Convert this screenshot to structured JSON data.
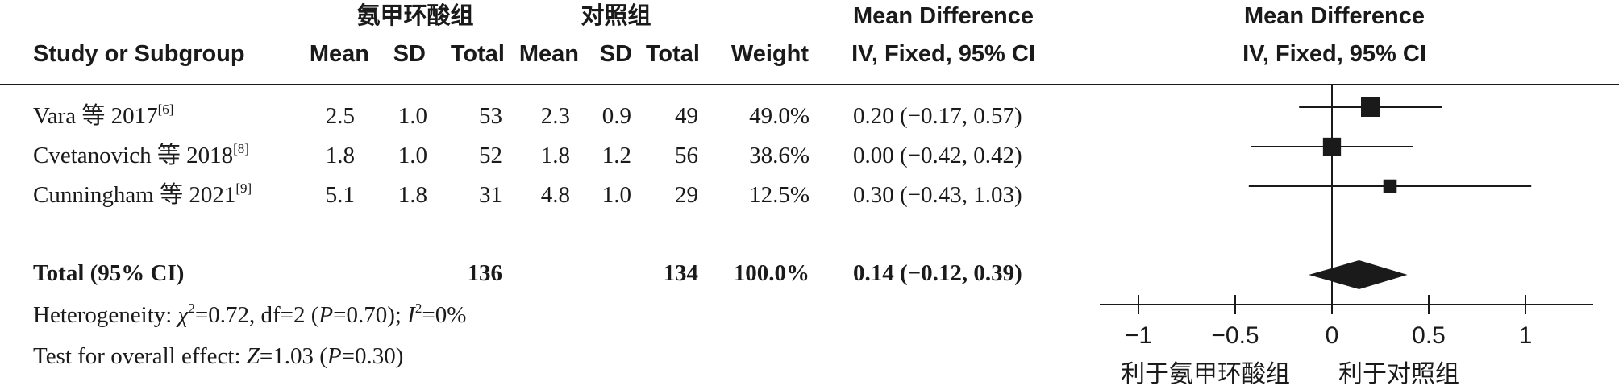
{
  "header": {
    "group1": "氨甲环酸组",
    "group2": "对照组",
    "md_top": "Mean Difference",
    "md_sub": "IV, Fixed, 95% CI",
    "plot_top": "Mean Difference",
    "plot_sub": "IV, Fixed, 95% CI",
    "study": "Study or Subgroup",
    "mean1": "Mean",
    "sd1": "SD",
    "total1": "Total",
    "mean2": "Mean",
    "sd2": "SD",
    "total2": "Total",
    "weight": "Weight"
  },
  "studies": [
    {
      "name": "Vara 等 2017",
      "ref": "[6]",
      "mean1": "2.5",
      "sd1": "1.0",
      "total1": "53",
      "mean2": "2.3",
      "sd2": "0.9",
      "total2": "49",
      "weight": "49.0%",
      "ci_text": "0.20 (−0.17, 0.57)"
    },
    {
      "name": "Cvetanovich 等 2018",
      "ref": "[8]",
      "mean1": "1.8",
      "sd1": "1.0",
      "total1": "52",
      "mean2": "1.8",
      "sd2": "1.2",
      "total2": "56",
      "weight": "38.6%",
      "ci_text": "0.00 (−0.42, 0.42)"
    },
    {
      "name": "Cunningham 等 2021",
      "ref": "[9]",
      "mean1": "5.1",
      "sd1": "1.8",
      "total1": "31",
      "mean2": "4.8",
      "sd2": "1.0",
      "total2": "29",
      "weight": "12.5%",
      "ci_text": "0.30 (−0.43, 1.03)"
    }
  ],
  "total": {
    "label": "Total (95% CI)",
    "total1": "136",
    "total2": "134",
    "weight": "100.0%",
    "ci_text": "0.14 (−0.12, 0.39)"
  },
  "heterogeneity": {
    "prefix": "Heterogeneity: ",
    "chi": "χ",
    "chi_sup": "2",
    "chi_rest": "=0.72, df=2 (",
    "p": "P",
    "p_rest": "=0.70); ",
    "i": "I",
    "i_sup": "2",
    "i_rest": "=0%"
  },
  "overall": {
    "prefix": "Test for overall effect: ",
    "z": "Z",
    "z_rest": "=1.03 (",
    "p": "P",
    "p_rest": "=0.30)"
  },
  "chart_data": {
    "type": "scatter",
    "subtype": "forest",
    "xlim": [
      -1.2,
      1.35
    ],
    "ticks": [
      -1,
      -0.5,
      0,
      0.5,
      1
    ],
    "tick_labels": [
      "−1",
      "−0.5",
      "0",
      "0.5",
      "1"
    ],
    "points": [
      {
        "mean": 0.2,
        "lo": -0.17,
        "hi": 0.57,
        "weight": 49.0
      },
      {
        "mean": 0.0,
        "lo": -0.42,
        "hi": 0.42,
        "weight": 38.6
      },
      {
        "mean": 0.3,
        "lo": -0.43,
        "hi": 1.03,
        "weight": 12.5
      }
    ],
    "pooled": {
      "mean": 0.14,
      "lo": -0.12,
      "hi": 0.39
    },
    "favours_left": "利于氨甲环酸组",
    "favours_right": "利于对照组"
  }
}
